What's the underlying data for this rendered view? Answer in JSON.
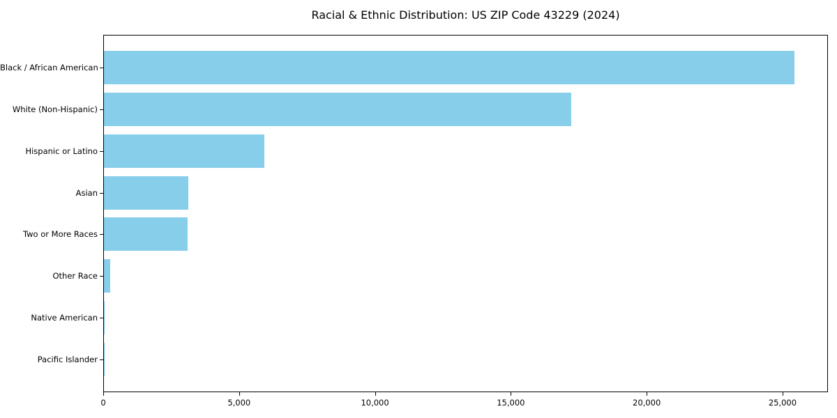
{
  "chart_data": {
    "type": "bar",
    "orientation": "horizontal",
    "title": "Racial & Ethnic Distribution: US ZIP Code 43229 (2024)",
    "categories": [
      "Black / African American",
      "White (Non-Hispanic)",
      "Hispanic or Latino",
      "Asian",
      "Two or More Races",
      "Other Race",
      "Native American",
      "Pacific Islander"
    ],
    "values": [
      25400,
      17200,
      5900,
      3110,
      3080,
      230,
      20,
      10
    ],
    "xlabel": "",
    "ylabel": "",
    "xlim": [
      0,
      26670
    ],
    "x_ticks": [
      0,
      5000,
      10000,
      15000,
      20000,
      25000
    ],
    "x_tick_labels": [
      "0",
      "5,000",
      "10,000",
      "15,000",
      "20,000",
      "25,000"
    ],
    "bar_color": "#87CEEB",
    "frame_color": "#000000",
    "background_color": "#ffffff",
    "grid": false,
    "legend": null
  }
}
